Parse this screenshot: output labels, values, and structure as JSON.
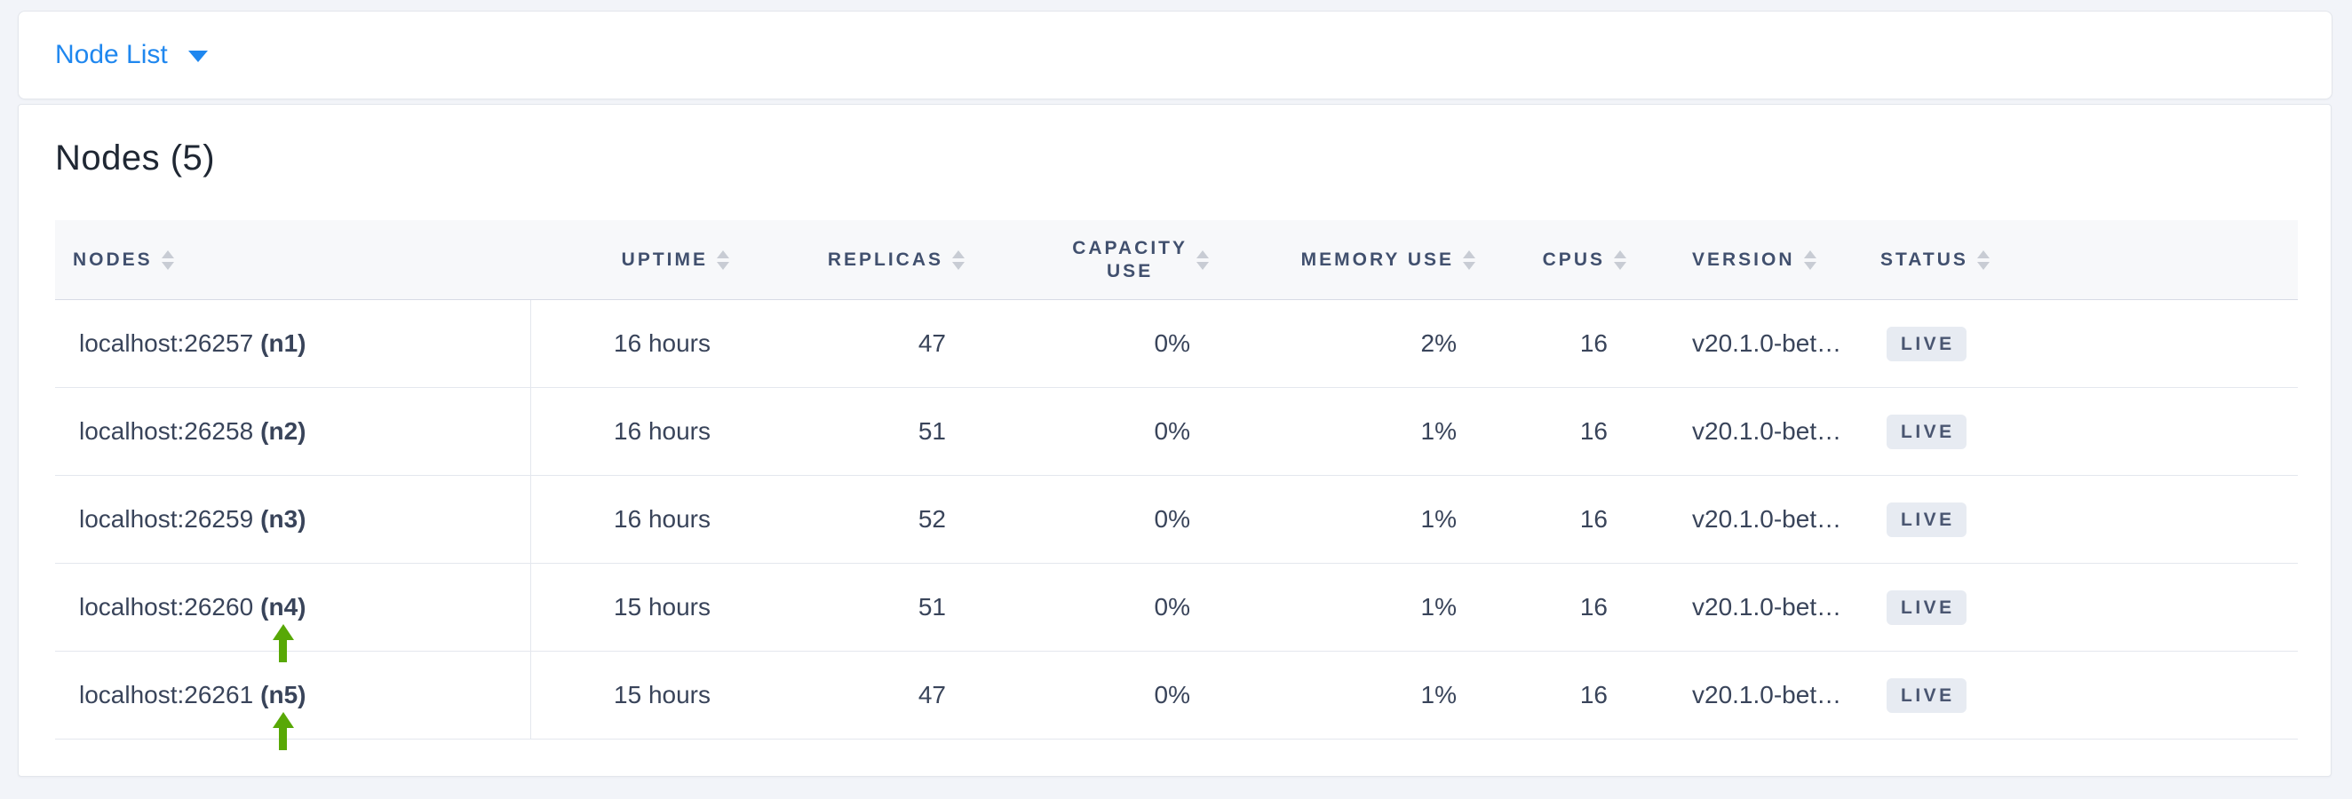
{
  "toolbar": {
    "view_selector_label": "Node List"
  },
  "main": {
    "title": "Nodes (5)",
    "table": {
      "headers": [
        {
          "label": "NODES"
        },
        {
          "label": "UPTIME"
        },
        {
          "label": "REPLICAS"
        },
        {
          "label": "CAPACITY USE",
          "line1": "CAPACITY",
          "line2": "USE"
        },
        {
          "label": "MEMORY USE"
        },
        {
          "label": "CPUS"
        },
        {
          "label": "VERSION"
        },
        {
          "label": "STATUS"
        }
      ],
      "rows": [
        {
          "address": "localhost:26257",
          "node_id": "(n1)",
          "uptime": "16 hours",
          "replicas": "47",
          "capacity_use": "0%",
          "memory_use": "2%",
          "cpus": "16",
          "version": "v20.1.0-bet…",
          "status": "LIVE"
        },
        {
          "address": "localhost:26258",
          "node_id": "(n2)",
          "uptime": "16 hours",
          "replicas": "51",
          "capacity_use": "0%",
          "memory_use": "1%",
          "cpus": "16",
          "version": "v20.1.0-bet…",
          "status": "LIVE"
        },
        {
          "address": "localhost:26259",
          "node_id": "(n3)",
          "uptime": "16 hours",
          "replicas": "52",
          "capacity_use": "0%",
          "memory_use": "1%",
          "cpus": "16",
          "version": "v20.1.0-bet…",
          "status": "LIVE"
        },
        {
          "address": "localhost:26260",
          "node_id": "(n4)",
          "uptime": "15 hours",
          "replicas": "51",
          "capacity_use": "0%",
          "memory_use": "1%",
          "cpus": "16",
          "version": "v20.1.0-bet…",
          "status": "LIVE",
          "annotated": true
        },
        {
          "address": "localhost:26261",
          "node_id": "(n5)",
          "uptime": "15 hours",
          "replicas": "47",
          "capacity_use": "0%",
          "memory_use": "1%",
          "cpus": "16",
          "version": "v20.1.0-bet…",
          "status": "LIVE",
          "annotated": true
        }
      ]
    }
  },
  "colors": {
    "accent_blue": "#1f87ef",
    "annotation_arrow_green": "#58a806",
    "live_badge_bg": "#e7ebf2",
    "live_badge_text": "#4a5671",
    "header_text": "#41506e",
    "page_background": "#f2f4f9"
  }
}
